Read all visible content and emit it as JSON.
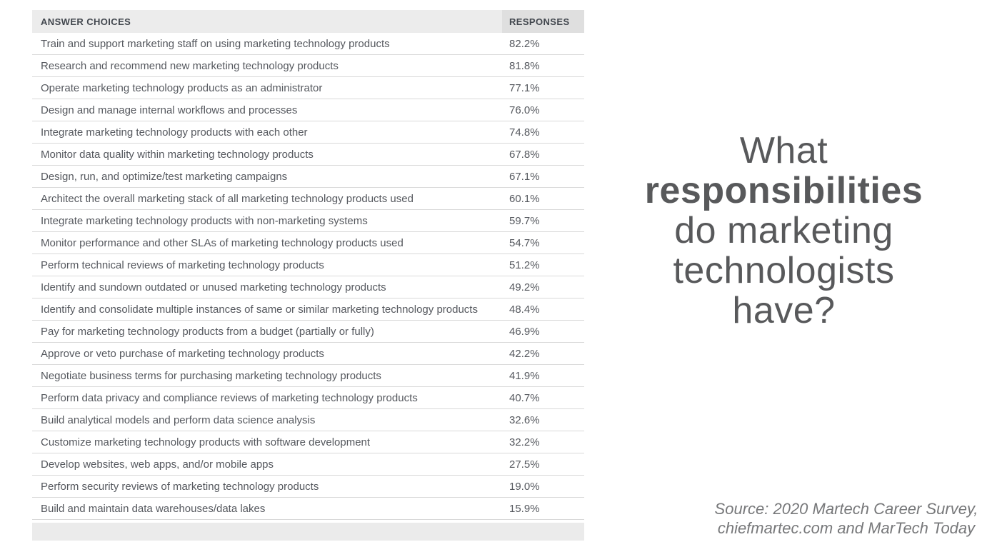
{
  "colors": {
    "header_bg_left": "#ececec",
    "header_bg_right": "#dfdfdf",
    "header_text": "#42474e",
    "row_text": "#55585e",
    "divider": "#d9d9d9",
    "footer_bar_bg": "#ebebeb",
    "title_text": "#58595b",
    "source_text": "#77787a"
  },
  "table": {
    "columns": [
      "ANSWER CHOICES",
      "RESPONSES"
    ],
    "rows": [
      {
        "label": "Train and support marketing staff on using marketing technology products",
        "response": "82.2%"
      },
      {
        "label": "Research and recommend new marketing technology products",
        "response": "81.8%"
      },
      {
        "label": "Operate marketing technology products as an administrator",
        "response": "77.1%"
      },
      {
        "label": "Design and manage internal workflows and processes",
        "response": "76.0%"
      },
      {
        "label": "Integrate marketing technology products with each other",
        "response": "74.8%"
      },
      {
        "label": "Monitor data quality within marketing technology products",
        "response": "67.8%"
      },
      {
        "label": "Design, run, and optimize/test marketing campaigns",
        "response": "67.1%"
      },
      {
        "label": "Architect the overall marketing stack of all marketing technology products used",
        "response": "60.1%"
      },
      {
        "label": "Integrate marketing technology products with non-marketing systems",
        "response": "59.7%"
      },
      {
        "label": "Monitor performance and other SLAs of marketing technology products used",
        "response": "54.7%"
      },
      {
        "label": "Perform technical reviews of marketing technology products",
        "response": "51.2%"
      },
      {
        "label": "Identify and sundown outdated or unused marketing technology products",
        "response": "49.2%"
      },
      {
        "label": "Identify and consolidate multiple instances of same or similar marketing technology products",
        "response": "48.4%"
      },
      {
        "label": "Pay for marketing technology products from a budget (partially or fully)",
        "response": "46.9%"
      },
      {
        "label": "Approve or veto purchase of marketing technology products",
        "response": "42.2%"
      },
      {
        "label": "Negotiate business terms for purchasing marketing technology products",
        "response": "41.9%"
      },
      {
        "label": "Perform data privacy and compliance reviews of marketing technology products",
        "response": "40.7%"
      },
      {
        "label": "Build analytical models and perform data science analysis",
        "response": "32.6%"
      },
      {
        "label": "Customize marketing technology products with software development",
        "response": "32.2%"
      },
      {
        "label": "Develop websites, web apps, and/or mobile apps",
        "response": "27.5%"
      },
      {
        "label": "Perform security reviews of marketing technology products",
        "response": "19.0%"
      },
      {
        "label": "Build and maintain data warehouses/data lakes",
        "response": "15.9%"
      }
    ]
  },
  "title": {
    "lines": [
      {
        "text": "What",
        "bold": false
      },
      {
        "text": "responsibilities",
        "bold": true
      },
      {
        "text": "do marketing",
        "bold": false
      },
      {
        "text": "technologists",
        "bold": false
      },
      {
        "text": "have?",
        "bold": false
      }
    ]
  },
  "source": {
    "line1": "Source: 2020 Martech Career Survey,",
    "line2": "chiefmartec.com and MarTech Today"
  },
  "chart_data": {
    "type": "table",
    "title": "What responsibilities do marketing technologists have?",
    "columns": [
      "ANSWER CHOICES",
      "RESPONSES"
    ],
    "categories": [
      "Train and support marketing staff on using marketing technology products",
      "Research and recommend new marketing technology products",
      "Operate marketing technology products as an administrator",
      "Design and manage internal workflows and processes",
      "Integrate marketing technology products with each other",
      "Monitor data quality within marketing technology products",
      "Design, run, and optimize/test marketing campaigns",
      "Architect the overall marketing stack of all marketing technology products used",
      "Integrate marketing technology products with non-marketing systems",
      "Monitor performance and other SLAs of marketing technology products used",
      "Perform technical reviews of marketing technology products",
      "Identify and sundown outdated or unused marketing technology products",
      "Identify and consolidate multiple instances of same or similar marketing technology products",
      "Pay for marketing technology products from a budget (partially or fully)",
      "Approve or veto purchase of marketing technology products",
      "Negotiate business terms for purchasing marketing technology products",
      "Perform data privacy and compliance reviews of marketing technology products",
      "Build analytical models and perform data science analysis",
      "Customize marketing technology products with software development",
      "Develop websites, web apps, and/or mobile apps",
      "Perform security reviews of marketing technology products",
      "Build and maintain data warehouses/data lakes"
    ],
    "values": [
      82.2,
      81.8,
      77.1,
      76.0,
      74.8,
      67.8,
      67.1,
      60.1,
      59.7,
      54.7,
      51.2,
      49.2,
      48.4,
      46.9,
      42.2,
      41.9,
      40.7,
      32.6,
      32.2,
      27.5,
      19.0,
      15.9
    ],
    "value_unit": "%",
    "source": "Source: 2020 Martech Career Survey, chiefmartec.com and MarTech Today"
  }
}
